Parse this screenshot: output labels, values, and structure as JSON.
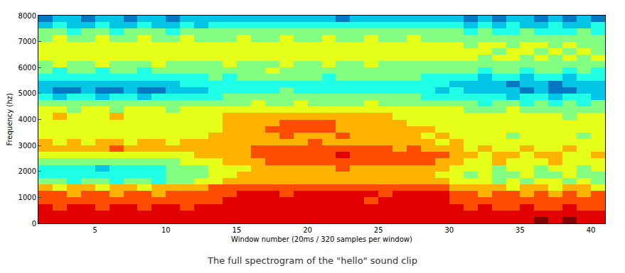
{
  "chart_data": {
    "type": "heatmap",
    "caption": "The full spectrogram of the \"hello\" sound clip",
    "x_label": "Window number (20ms / 320 samples per window)",
    "y_label": "Frequency (hz)",
    "xlim": [
      1,
      41
    ],
    "xticks": [
      5,
      10,
      15,
      20,
      25,
      30,
      35,
      40
    ],
    "ylim": [
      0,
      8000
    ],
    "yticks": [
      0,
      1000,
      2000,
      3000,
      4000,
      5000,
      6000,
      7000,
      8000
    ],
    "color": "jet",
    "zlim": [
      0,
      10
    ],
    "x_edges": [
      1,
      2,
      3,
      4,
      5,
      6,
      7,
      8,
      9,
      10,
      11,
      12,
      13,
      14,
      15,
      16,
      17,
      18,
      19,
      20,
      21,
      22,
      23,
      24,
      25,
      26,
      27,
      28,
      29,
      30,
      31,
      32,
      33,
      34,
      35,
      36,
      37,
      38,
      39,
      40,
      41
    ],
    "y_edges": [
      0,
      250,
      500,
      750,
      1000,
      1250,
      1500,
      1750,
      2000,
      2250,
      2500,
      2750,
      3000,
      3250,
      3500,
      3750,
      4000,
      4250,
      4500,
      4750,
      5000,
      5250,
      5500,
      5750,
      6000,
      6250,
      6500,
      6750,
      7000,
      7250,
      7500,
      7750,
      8000
    ],
    "z": [
      [
        9,
        9,
        9,
        9,
        9,
        9,
        9,
        9,
        9,
        9,
        9,
        9,
        9,
        9,
        9,
        9,
        9,
        9,
        9,
        9,
        9,
        9,
        9,
        9,
        9,
        9,
        9,
        9,
        9,
        9,
        9,
        9,
        9,
        9,
        9,
        10,
        9,
        10,
        9,
        9
      ],
      [
        9,
        9,
        9,
        9,
        9,
        9,
        9,
        9,
        9,
        9,
        9,
        9,
        9,
        9,
        9,
        9,
        9,
        9,
        9,
        9,
        9,
        9,
        9,
        9,
        9,
        9,
        9,
        9,
        9,
        9,
        9,
        9,
        9,
        9,
        9,
        9,
        9,
        9,
        9,
        9
      ],
      [
        9,
        8,
        9,
        9,
        8,
        9,
        9,
        8,
        9,
        9,
        8,
        9,
        9,
        9,
        9,
        9,
        9,
        9,
        9,
        9,
        9,
        9,
        9,
        9,
        9,
        9,
        9,
        9,
        9,
        9,
        8,
        9,
        8,
        8,
        9,
        8,
        8,
        9,
        8,
        8
      ],
      [
        8,
        8,
        8,
        8,
        8,
        8,
        8,
        8,
        8,
        8,
        8,
        8,
        8,
        9,
        9,
        9,
        9,
        9,
        9,
        9,
        9,
        9,
        9,
        8,
        9,
        9,
        9,
        9,
        9,
        8,
        8,
        8,
        8,
        8,
        8,
        8,
        8,
        8,
        8,
        8
      ],
      [
        8,
        8,
        7,
        8,
        8,
        7,
        8,
        8,
        7,
        8,
        8,
        8,
        8,
        8,
        9,
        9,
        9,
        8,
        9,
        9,
        9,
        9,
        9,
        9,
        8,
        9,
        9,
        9,
        9,
        8,
        8,
        7,
        8,
        8,
        7,
        8,
        7,
        8,
        7,
        8
      ],
      [
        7,
        6,
        7,
        7,
        6,
        7,
        7,
        6,
        7,
        7,
        7,
        7,
        8,
        8,
        8,
        8,
        8,
        8,
        8,
        8,
        8,
        8,
        8,
        8,
        8,
        8,
        8,
        8,
        8,
        7,
        7,
        7,
        7,
        6,
        7,
        7,
        6,
        7,
        7,
        6
      ],
      [
        5,
        5,
        4,
        5,
        5,
        4,
        5,
        5,
        4,
        5,
        5,
        6,
        6,
        7,
        7,
        7,
        7,
        7,
        7,
        7,
        7,
        7,
        7,
        7,
        7,
        7,
        7,
        7,
        7,
        6,
        6,
        6,
        5,
        6,
        5,
        6,
        6,
        5,
        6,
        5
      ],
      [
        4,
        4,
        4,
        4,
        4,
        4,
        4,
        4,
        4,
        5,
        5,
        5,
        6,
        6,
        7,
        7,
        7,
        7,
        7,
        7,
        7,
        7,
        7,
        7,
        7,
        7,
        7,
        7,
        6,
        6,
        5,
        6,
        5,
        5,
        6,
        5,
        5,
        6,
        5,
        5
      ],
      [
        4,
        4,
        4,
        4,
        3,
        4,
        4,
        4,
        4,
        5,
        5,
        5,
        6,
        6,
        6,
        7,
        7,
        7,
        7,
        7,
        7,
        8,
        7,
        7,
        7,
        7,
        7,
        7,
        7,
        6,
        6,
        6,
        5,
        6,
        6,
        5,
        6,
        6,
        5,
        6
      ],
      [
        5,
        5,
        5,
        5,
        5,
        5,
        5,
        5,
        5,
        5,
        6,
        6,
        6,
        7,
        7,
        7,
        8,
        8,
        8,
        8,
        8,
        8,
        8,
        8,
        8,
        8,
        8,
        8,
        7,
        7,
        6,
        6,
        7,
        6,
        6,
        6,
        7,
        6,
        6,
        6
      ],
      [
        6,
        6,
        6,
        6,
        6,
        6,
        6,
        6,
        6,
        6,
        6,
        7,
        7,
        7,
        7,
        8,
        8,
        8,
        8,
        8,
        8,
        9,
        8,
        8,
        8,
        8,
        8,
        8,
        8,
        7,
        7,
        6,
        7,
        7,
        6,
        7,
        7,
        6,
        6,
        7
      ],
      [
        7,
        7,
        7,
        7,
        7,
        8,
        7,
        7,
        7,
        7,
        7,
        7,
        7,
        7,
        7,
        8,
        8,
        8,
        8,
        8,
        8,
        8,
        8,
        8,
        8,
        7,
        8,
        7,
        7,
        7,
        6,
        7,
        6,
        6,
        7,
        6,
        6,
        7,
        6,
        6
      ],
      [
        7,
        6,
        7,
        6,
        7,
        7,
        6,
        7,
        7,
        6,
        7,
        7,
        7,
        7,
        7,
        7,
        7,
        7,
        7,
        8,
        7,
        7,
        7,
        7,
        7,
        7,
        7,
        7,
        6,
        7,
        6,
        6,
        6,
        6,
        6,
        6,
        6,
        6,
        6,
        6
      ],
      [
        6,
        6,
        6,
        6,
        6,
        6,
        6,
        6,
        6,
        6,
        6,
        6,
        7,
        7,
        7,
        7,
        7,
        8,
        7,
        7,
        7,
        8,
        7,
        7,
        7,
        7,
        7,
        6,
        7,
        6,
        6,
        6,
        6,
        5,
        6,
        6,
        6,
        6,
        5,
        6
      ],
      [
        6,
        6,
        6,
        6,
        6,
        6,
        6,
        6,
        6,
        6,
        6,
        6,
        6,
        7,
        7,
        7,
        8,
        8,
        8,
        8,
        8,
        7,
        7,
        7,
        7,
        7,
        7,
        7,
        6,
        6,
        6,
        6,
        6,
        6,
        6,
        6,
        6,
        6,
        6,
        6
      ],
      [
        6,
        6,
        6,
        6,
        6,
        6,
        6,
        6,
        6,
        6,
        6,
        6,
        6,
        7,
        7,
        7,
        7,
        8,
        8,
        8,
        8,
        7,
        7,
        7,
        7,
        7,
        6,
        6,
        6,
        6,
        6,
        6,
        6,
        6,
        6,
        6,
        6,
        6,
        6,
        6
      ],
      [
        6,
        7,
        6,
        6,
        6,
        7,
        6,
        6,
        6,
        6,
        6,
        6,
        6,
        7,
        7,
        7,
        7,
        7,
        7,
        7,
        7,
        7,
        7,
        7,
        7,
        6,
        6,
        6,
        6,
        6,
        6,
        6,
        6,
        6,
        6,
        6,
        6,
        5,
        6,
        6
      ],
      [
        6,
        6,
        5,
        6,
        6,
        5,
        6,
        6,
        6,
        5,
        6,
        6,
        6,
        6,
        6,
        6,
        6,
        6,
        6,
        6,
        6,
        6,
        6,
        6,
        6,
        6,
        6,
        6,
        6,
        6,
        5,
        5,
        5,
        6,
        5,
        5,
        5,
        5,
        5,
        5
      ],
      [
        5,
        5,
        5,
        5,
        5,
        5,
        5,
        5,
        5,
        5,
        5,
        5,
        5,
        5,
        5,
        6,
        5,
        5,
        6,
        5,
        5,
        5,
        5,
        6,
        5,
        5,
        5,
        5,
        5,
        5,
        5,
        4,
        5,
        5,
        4,
        5,
        4,
        5,
        4,
        5
      ],
      [
        4,
        3,
        4,
        4,
        3,
        4,
        4,
        3,
        4,
        4,
        4,
        4,
        4,
        5,
        5,
        5,
        5,
        5,
        5,
        5,
        5,
        5,
        5,
        5,
        5,
        5,
        5,
        4,
        4,
        4,
        4,
        4,
        4,
        3,
        4,
        4,
        3,
        4,
        4,
        3
      ],
      [
        3,
        2,
        2,
        3,
        2,
        2,
        3,
        2,
        2,
        3,
        3,
        3,
        4,
        4,
        4,
        4,
        4,
        5,
        4,
        4,
        4,
        4,
        4,
        4,
        4,
        4,
        4,
        4,
        3,
        4,
        3,
        3,
        3,
        3,
        2,
        3,
        2,
        2,
        3,
        3
      ],
      [
        3,
        3,
        3,
        3,
        3,
        3,
        3,
        3,
        3,
        3,
        4,
        4,
        4,
        4,
        4,
        4,
        4,
        4,
        4,
        4,
        4,
        4,
        4,
        4,
        4,
        4,
        4,
        4,
        4,
        3,
        3,
        3,
        3,
        2,
        3,
        3,
        2,
        3,
        3,
        3
      ],
      [
        4,
        4,
        4,
        4,
        4,
        4,
        4,
        4,
        4,
        4,
        4,
        4,
        5,
        4,
        5,
        5,
        5,
        5,
        5,
        5,
        4,
        5,
        5,
        5,
        5,
        5,
        5,
        4,
        4,
        4,
        4,
        3,
        4,
        4,
        3,
        4,
        4,
        3,
        4,
        4
      ],
      [
        5,
        4,
        5,
        5,
        4,
        5,
        5,
        4,
        5,
        5,
        5,
        5,
        5,
        5,
        5,
        5,
        6,
        5,
        5,
        5,
        5,
        5,
        5,
        5,
        5,
        5,
        5,
        5,
        5,
        5,
        5,
        4,
        5,
        5,
        4,
        5,
        5,
        4,
        5,
        4
      ],
      [
        5,
        6,
        5,
        5,
        6,
        5,
        5,
        5,
        6,
        5,
        5,
        5,
        5,
        6,
        5,
        5,
        5,
        6,
        5,
        5,
        6,
        5,
        5,
        6,
        5,
        5,
        5,
        5,
        5,
        5,
        5,
        5,
        5,
        5,
        5,
        5,
        5,
        5,
        5,
        5
      ],
      [
        6,
        6,
        6,
        6,
        6,
        6,
        6,
        6,
        6,
        6,
        6,
        6,
        6,
        6,
        6,
        6,
        6,
        6,
        6,
        6,
        6,
        6,
        6,
        6,
        6,
        6,
        6,
        6,
        6,
        6,
        6,
        5,
        6,
        6,
        5,
        6,
        5,
        6,
        5,
        6
      ],
      [
        6,
        6,
        6,
        6,
        6,
        6,
        6,
        6,
        6,
        6,
        6,
        6,
        6,
        6,
        6,
        6,
        6,
        6,
        6,
        6,
        6,
        6,
        6,
        6,
        6,
        6,
        6,
        6,
        6,
        6,
        6,
        6,
        5,
        6,
        6,
        5,
        6,
        5,
        6,
        5
      ],
      [
        6,
        6,
        6,
        6,
        6,
        6,
        6,
        6,
        6,
        6,
        6,
        6,
        6,
        6,
        6,
        6,
        6,
        6,
        6,
        6,
        6,
        6,
        6,
        6,
        6,
        6,
        6,
        6,
        6,
        6,
        5,
        6,
        6,
        5,
        6,
        6,
        5,
        6,
        5,
        5
      ],
      [
        5,
        6,
        5,
        5,
        6,
        5,
        5,
        6,
        5,
        5,
        6,
        5,
        5,
        5,
        6,
        5,
        5,
        6,
        5,
        5,
        6,
        5,
        5,
        6,
        5,
        5,
        6,
        5,
        5,
        5,
        5,
        5,
        5,
        5,
        5,
        5,
        5,
        5,
        5,
        5
      ],
      [
        5,
        5,
        4,
        5,
        5,
        4,
        5,
        5,
        5,
        4,
        5,
        5,
        5,
        5,
        5,
        5,
        5,
        5,
        5,
        5,
        5,
        5,
        5,
        5,
        5,
        5,
        5,
        5,
        5,
        5,
        4,
        5,
        4,
        4,
        5,
        4,
        4,
        4,
        5,
        4
      ],
      [
        3,
        4,
        3,
        3,
        4,
        3,
        3,
        4,
        3,
        3,
        4,
        3,
        4,
        4,
        4,
        4,
        4,
        4,
        4,
        4,
        4,
        4,
        4,
        4,
        4,
        4,
        4,
        4,
        4,
        4,
        3,
        4,
        3,
        4,
        3,
        3,
        4,
        3,
        3,
        4
      ],
      [
        2,
        3,
        3,
        2,
        3,
        3,
        2,
        3,
        3,
        2,
        3,
        3,
        3,
        3,
        3,
        3,
        3,
        3,
        3,
        3,
        3,
        2,
        3,
        3,
        3,
        3,
        3,
        3,
        3,
        3,
        2,
        3,
        2,
        3,
        3,
        2,
        3,
        2,
        3,
        2
      ]
    ]
  }
}
